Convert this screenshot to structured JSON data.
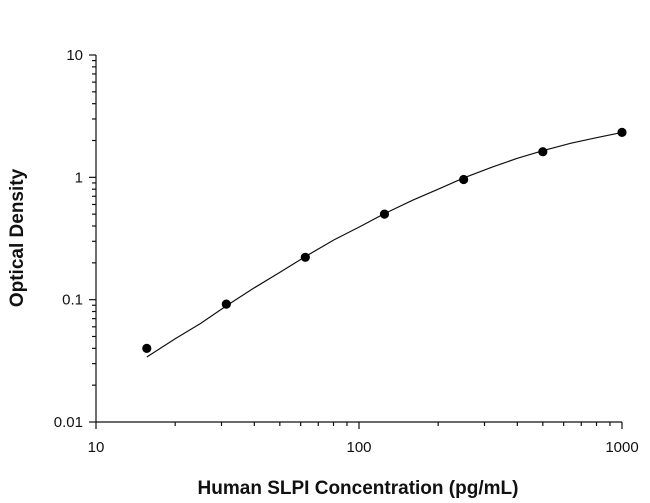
{
  "chart_data": {
    "type": "scatter",
    "xlabel": "Human SLPI Concentration (pg/mL)",
    "ylabel": "Optical Density",
    "x_scale": "log",
    "y_scale": "log",
    "xlim": [
      10,
      1000
    ],
    "ylim": [
      0.01,
      10
    ],
    "x_ticks": [
      "10",
      "100",
      "1000"
    ],
    "y_ticks": [
      "10",
      "1",
      "0.1",
      "0.01"
    ],
    "grid": false,
    "series": [
      {
        "x": [
          15.6,
          31.3,
          62.5,
          125,
          250,
          500,
          1000
        ],
        "y": [
          0.04,
          0.092,
          0.222,
          0.5,
          0.96,
          1.62,
          2.33
        ]
      }
    ],
    "fit_curve": {
      "x": [
        15.6,
        20,
        25,
        31.3,
        40,
        50,
        62.5,
        80,
        100,
        125,
        160,
        200,
        250,
        320,
        400,
        500,
        640,
        800,
        1000
      ],
      "y": [
        0.034,
        0.048,
        0.064,
        0.089,
        0.125,
        0.167,
        0.225,
        0.307,
        0.392,
        0.505,
        0.65,
        0.8,
        0.99,
        1.21,
        1.43,
        1.65,
        1.9,
        2.11,
        2.33
      ]
    }
  }
}
